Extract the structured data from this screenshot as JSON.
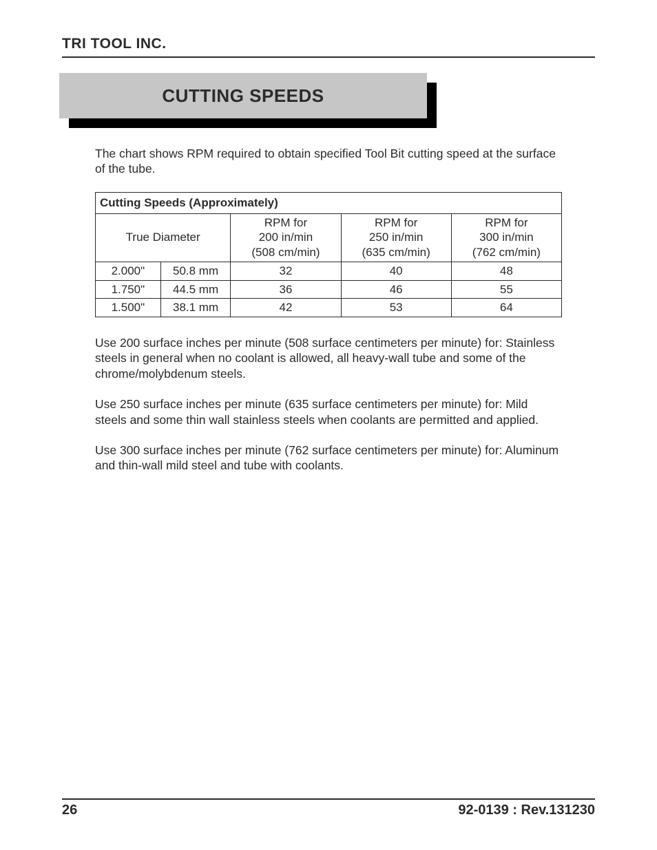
{
  "company": "TRI TOOL INC.",
  "title": "CUTTING SPEEDS",
  "intro": "The chart shows RPM required to obtain specified Tool Bit cutting speed at the surface of the tube.",
  "table": {
    "caption": "Cutting Speeds (Approximately)",
    "true_diameter_label": "True Diameter",
    "rpm_headers": [
      {
        "l1": "RPM for",
        "l2": "200 in/min",
        "l3": "(508 cm/min)"
      },
      {
        "l1": "RPM for",
        "l2": "250 in/min",
        "l3": "(635 cm/min)"
      },
      {
        "l1": "RPM for",
        "l2": "300 in/min",
        "l3": "(762 cm/min)"
      }
    ],
    "rows": [
      {
        "inch": "2.000\"",
        "mm": "50.8 mm",
        "r200": "32",
        "r250": "40",
        "r300": "48"
      },
      {
        "inch": "1.750\"",
        "mm": "44.5 mm",
        "r200": "36",
        "r250": "46",
        "r300": "55"
      },
      {
        "inch": "1.500\"",
        "mm": "38.1 mm",
        "r200": "42",
        "r250": "53",
        "r300": "64"
      }
    ]
  },
  "notes": [
    "Use 200 surface inches per minute (508 surface centimeters per minute) for: Stainless steels in general when no coolant is allowed, all heavy-wall tube and some of the chrome/molybdenum steels.",
    "Use 250 surface inches per minute (635 surface centimeters per minute) for: Mild steels and some thin wall stainless steels when coolants are permitted and applied.",
    "Use 300 surface inches per minute (762 surface centimeters per minute) for: Aluminum and thin-wall mild steel and tube with coolants."
  ],
  "footer": {
    "page": "26",
    "rev": "92-0139 : Rev.131230"
  },
  "colors": {
    "text": "#2b2b2b",
    "title_bg": "#c6c6c6",
    "shadow": "#000000",
    "rule": "#2b2b2b",
    "page_bg": "#ffffff"
  }
}
